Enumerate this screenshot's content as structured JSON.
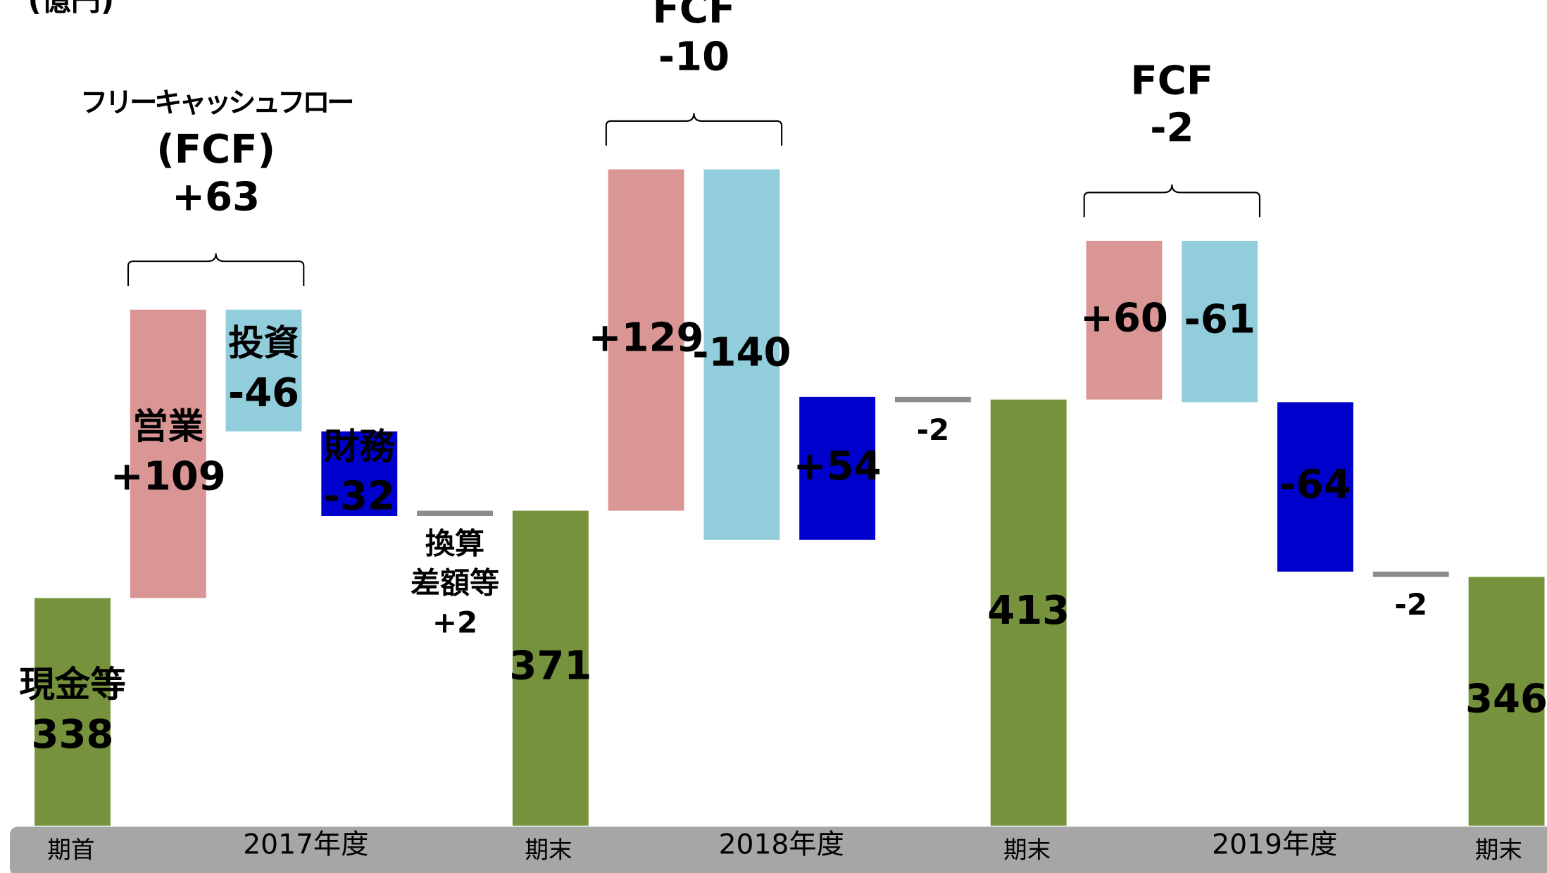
{
  "chart_data": {
    "type": "waterfall",
    "unit_label": "(億円)",
    "categories": [
      "現金等",
      "営業",
      "投資",
      "財務",
      [
        "換算",
        "差額等"
      ],
      null,
      null,
      null,
      null,
      null,
      null,
      null,
      null,
      null,
      null,
      null
    ],
    "values": [
      338,
      109,
      -46,
      -32,
      2,
      371,
      129,
      -140,
      54,
      -2,
      413,
      60,
      -61,
      -64,
      -2,
      346
    ],
    "value_labels": [
      "338",
      "+109",
      "-46",
      "-32",
      "+2",
      "371",
      "+129",
      "-140",
      "+54",
      "-2",
      "413",
      "+60",
      "-61",
      "-64",
      "-2",
      "346"
    ],
    "bar_types": [
      "total",
      "delta",
      "delta",
      "delta",
      "delta",
      "total",
      "delta",
      "delta",
      "delta",
      "delta",
      "total",
      "delta",
      "delta",
      "delta",
      "delta",
      "total"
    ],
    "colors": [
      "#76923c",
      "#da9694",
      "#92cddc",
      "#0000cc",
      "#8c8c8c",
      "#76923c",
      "#da9694",
      "#92cddc",
      "#0000cc",
      "#8c8c8c",
      "#76923c",
      "#da9694",
      "#92cddc",
      "#0000cc",
      "#8c8c8c",
      "#76923c"
    ],
    "ylim": [
      252,
      564
    ],
    "x_labels": [
      "期首",
      "2017年度",
      "期末",
      "2018年度",
      "期末",
      "2019年度",
      "期末"
    ],
    "annotations": [
      {
        "lines": [
          "フリーキャッシュフロー",
          "(FCF)",
          "+63"
        ]
      },
      {
        "lines": [
          "FCF",
          "-10"
        ]
      },
      {
        "lines": [
          "FCF",
          "-2"
        ]
      }
    ]
  }
}
